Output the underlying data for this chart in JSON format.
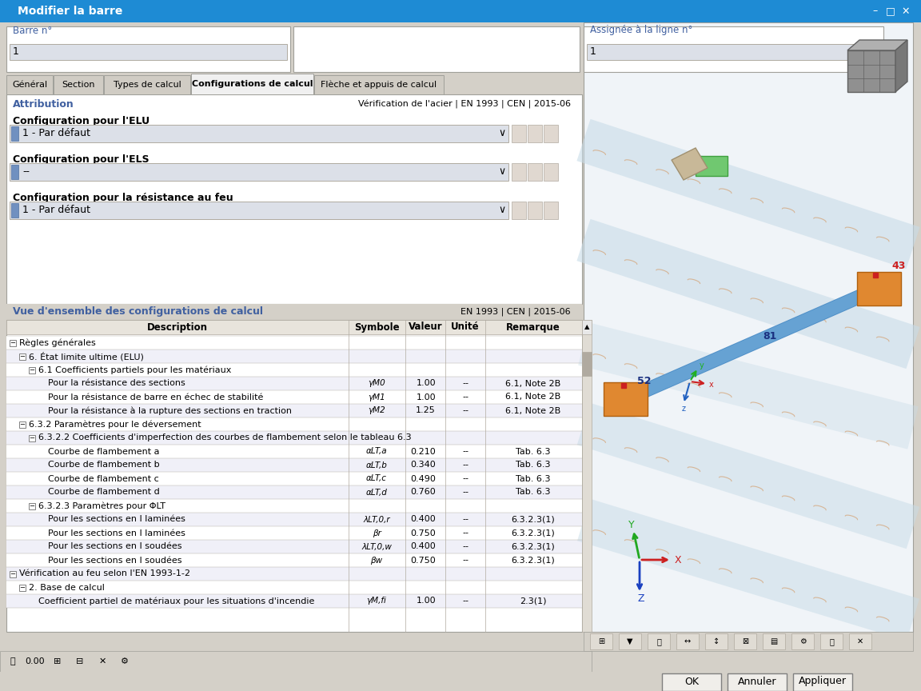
{
  "title": "Modifier la barre",
  "title_bar_color": "#1e8bd4",
  "bg_color": "#d4d0c8",
  "white": "#ffffff",
  "light_gray": "#e8e8e8",
  "input_bg": "#dce0e8",
  "mid_gray": "#b0aaa0",
  "border_gray": "#a0a09a",
  "dark_text": "#000000",
  "blue_label": "#4060a0",
  "tab_active": "#f0f0f0",
  "tab_inactive": "#c8c4bc",
  "header_bg": "#d8d4cc",
  "row_alt": "#eaeaf0",
  "row_normal": "#ffffff",
  "scene_bg": "#e8f0f8",
  "beam_color": "#7ab0d8",
  "beam_highlight": "#9ac8f0",
  "orange_connector": "#e08830",
  "barre_label": "Barre n°",
  "barre_value": "1",
  "assignee_label": "Assignée à la ligne n°",
  "assignee_value": "1",
  "tabs": [
    "Général",
    "Section",
    "Types de calcul",
    "Configurations de calcul",
    "Flèche et appuis de calcul"
  ],
  "active_tab": 3,
  "attribution_label": "Attribution",
  "verification_label": "Vérification de l'acier | EN 1993 | CEN | 2015-06",
  "elu_label": "Configuration pour l'ELU",
  "elu_value": "1 - Par défaut",
  "els_label": "Configuration pour l'ELS",
  "els_value": "--",
  "feu_label": "Configuration pour la résistance au feu",
  "feu_value": "1 - Par défaut",
  "vue_label": "Vue d'ensemble des configurations de calcul",
  "en_label": "EN 1993 | CEN | 2015-06",
  "col_headers": [
    "Description",
    "Symbole",
    "Valeur",
    "Unité",
    "Remarque"
  ],
  "tree_data": [
    {
      "level": 0,
      "has_child": true,
      "collapsed": false,
      "text": "Règles générales",
      "symbol": "",
      "value": "",
      "unite": "",
      "remarque": ""
    },
    {
      "level": 1,
      "has_child": true,
      "collapsed": false,
      "text": "6. État limite ultime (ELU)",
      "symbol": "",
      "value": "",
      "unite": "",
      "remarque": ""
    },
    {
      "level": 2,
      "has_child": true,
      "collapsed": false,
      "text": "6.1 Coefficients partiels pour les matériaux",
      "symbol": "",
      "value": "",
      "unite": "",
      "remarque": ""
    },
    {
      "level": 3,
      "has_child": false,
      "collapsed": false,
      "text": "Pour la résistance des sections",
      "symbol": "γM0",
      "value": "1.00",
      "unite": "--",
      "remarque": "6.1, Note 2B"
    },
    {
      "level": 3,
      "has_child": false,
      "collapsed": false,
      "text": "Pour la résistance de barre en échec de stabilité",
      "symbol": "γM1",
      "value": "1.00",
      "unite": "--",
      "remarque": "6.1, Note 2B"
    },
    {
      "level": 3,
      "has_child": false,
      "collapsed": false,
      "text": "Pour la résistance à la rupture des sections en traction",
      "symbol": "γM2",
      "value": "1.25",
      "unite": "--",
      "remarque": "6.1, Note 2B"
    },
    {
      "level": 1,
      "has_child": true,
      "collapsed": false,
      "text": "6.3.2 Paramètres pour le déversement",
      "symbol": "",
      "value": "",
      "unite": "",
      "remarque": ""
    },
    {
      "level": 2,
      "has_child": true,
      "collapsed": false,
      "text": "6.3.2.2 Coefficients d'imperfection des courbes de flambement selon le tableau 6.3",
      "symbol": "",
      "value": "",
      "unite": "",
      "remarque": ""
    },
    {
      "level": 3,
      "has_child": false,
      "collapsed": false,
      "text": "Courbe de flambement a",
      "symbol": "αLT,a",
      "value": "0.210",
      "unite": "--",
      "remarque": "Tab. 6.3"
    },
    {
      "level": 3,
      "has_child": false,
      "collapsed": false,
      "text": "Courbe de flambement b",
      "symbol": "αLT,b",
      "value": "0.340",
      "unite": "--",
      "remarque": "Tab. 6.3"
    },
    {
      "level": 3,
      "has_child": false,
      "collapsed": false,
      "text": "Courbe de flambement c",
      "symbol": "αLT,c",
      "value": "0.490",
      "unite": "--",
      "remarque": "Tab. 6.3"
    },
    {
      "level": 3,
      "has_child": false,
      "collapsed": false,
      "text": "Courbe de flambement d",
      "symbol": "αLT,d",
      "value": "0.760",
      "unite": "--",
      "remarque": "Tab. 6.3"
    },
    {
      "level": 2,
      "has_child": true,
      "collapsed": false,
      "text": "6.3.2.3 Paramètres pour ΦLT",
      "symbol": "",
      "value": "",
      "unite": "",
      "remarque": ""
    },
    {
      "level": 3,
      "has_child": false,
      "collapsed": false,
      "text": "Pour les sections en I laminées",
      "symbol": "λLT,0,r",
      "value": "0.400",
      "unite": "--",
      "remarque": "6.3.2.3(1)"
    },
    {
      "level": 3,
      "has_child": false,
      "collapsed": false,
      "text": "Pour les sections en I laminées",
      "symbol": "βr",
      "value": "0.750",
      "unite": "--",
      "remarque": "6.3.2.3(1)"
    },
    {
      "level": 3,
      "has_child": false,
      "collapsed": false,
      "text": "Pour les sections en I soudées",
      "symbol": "λLT,0,w",
      "value": "0.400",
      "unite": "--",
      "remarque": "6.3.2.3(1)"
    },
    {
      "level": 3,
      "has_child": false,
      "collapsed": false,
      "text": "Pour les sections en I soudées",
      "symbol": "βw",
      "value": "0.750",
      "unite": "--",
      "remarque": "6.3.2.3(1)"
    },
    {
      "level": 0,
      "has_child": true,
      "collapsed": false,
      "text": "Vérification au feu selon l'EN 1993-1-2",
      "symbol": "",
      "value": "",
      "unite": "",
      "remarque": ""
    },
    {
      "level": 1,
      "has_child": true,
      "collapsed": false,
      "text": "2. Base de calcul",
      "symbol": "",
      "value": "",
      "unite": "",
      "remarque": ""
    },
    {
      "level": 2,
      "has_child": false,
      "collapsed": false,
      "text": "Coefficient partiel de matériaux pour les situations d'incendie",
      "symbol": "γM,fi",
      "value": "1.00",
      "unite": "--",
      "remarque": "2.3(1)"
    }
  ],
  "buttons": [
    "OK",
    "Annuler",
    "Appliquer"
  ]
}
